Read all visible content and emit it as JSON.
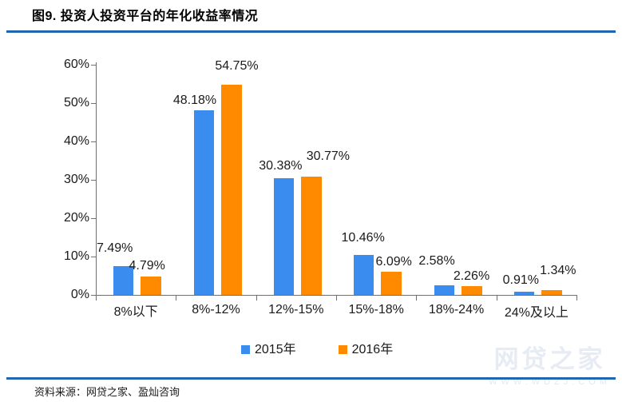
{
  "title": "图9. 投资人投资平台的年化收益率情况",
  "source_note": "资料来源：网贷之家、盈灿咨询",
  "watermark": {
    "name": "网贷之家",
    "url": "www.wdzj.com"
  },
  "colors": {
    "bar_2015": "#3A8DEE",
    "bar_2016": "#FF8A00",
    "rule_blue": "#2166B0",
    "axis_gray": "#707070",
    "label_text": "#1A1A1A",
    "watermark_text": "#E7EBF4"
  },
  "legend": {
    "items": [
      {
        "label": "2015年",
        "color_key": "bar_2015"
      },
      {
        "label": "2016年",
        "color_key": "bar_2016"
      }
    ]
  },
  "chart_data": {
    "type": "bar",
    "title": "投资人投资平台的年化收益率情况",
    "xlabel": "",
    "ylabel": "",
    "categories": [
      "8%以下",
      "8%-12%",
      "12%-15%",
      "15%-18%",
      "18%-24%",
      "24%及以上"
    ],
    "series": [
      {
        "name": "2015年",
        "color_key": "bar_2015",
        "values": [
          7.49,
          48.18,
          30.38,
          10.46,
          2.58,
          0.91
        ],
        "label_dx": [
          -11,
          -11,
          -4,
          -1,
          -9,
          -4
        ],
        "label_gap": [
          13,
          3,
          6,
          12,
          21,
          5
        ]
      },
      {
        "name": "2016年",
        "color_key": "bar_2016",
        "values": [
          4.79,
          54.75,
          30.77,
          6.09,
          2.26,
          1.34
        ],
        "label_dx": [
          -5,
          7,
          21,
          3,
          0,
          8
        ],
        "label_gap": [
          4,
          14,
          16,
          3,
          3,
          15
        ]
      }
    ],
    "y_ticks": [
      "0%",
      "10%",
      "20%",
      "30%",
      "40%",
      "50%",
      "60%"
    ],
    "ylim": [
      0,
      60
    ],
    "grid": false,
    "legend_position": "bottom",
    "data_label_format": "0.00%",
    "xlabel_dy": [
      3,
      0,
      0,
      0,
      0,
      4
    ]
  }
}
